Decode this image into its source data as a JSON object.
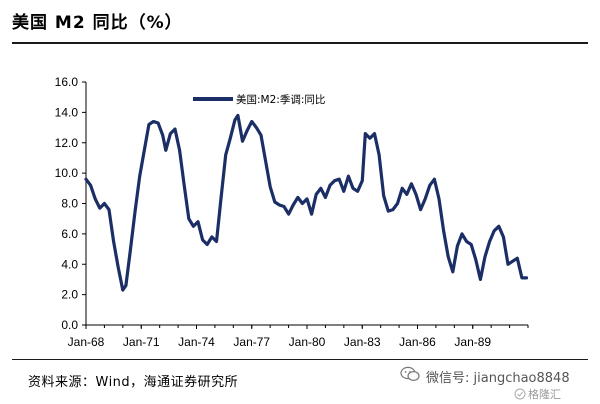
{
  "figure": {
    "title": "美国 M2 同比（%）",
    "source": "资料来源：Wind，海通证券研究所",
    "wechat": "微信号: jiangchao8848",
    "watermark": "格隆汇"
  },
  "chart_data": {
    "type": "line",
    "title": "",
    "xlabel": "",
    "ylabel": "",
    "ylim": [
      0,
      16
    ],
    "yticks": [
      "0.0",
      "2.0",
      "4.0",
      "6.0",
      "8.0",
      "10.0",
      "12.0",
      "14.0",
      "16.0"
    ],
    "xticks": [
      "Jan-68",
      "Jan-71",
      "Jan-74",
      "Jan-77",
      "Jan-80",
      "Jan-83",
      "Jan-86",
      "Jan-89"
    ],
    "x_range": [
      "1968-01",
      "1992-01"
    ],
    "grid": false,
    "legend": "top-center",
    "color": "#1b2f66",
    "series": [
      {
        "name": "美国:M2:季调:同比",
        "points": [
          [
            "1968-01",
            9.6
          ],
          [
            "1968-04",
            9.2
          ],
          [
            "1968-07",
            8.3
          ],
          [
            "1968-10",
            7.7
          ],
          [
            "1969-01",
            8.0
          ],
          [
            "1969-04",
            7.6
          ],
          [
            "1969-07",
            5.5
          ],
          [
            "1969-10",
            3.8
          ],
          [
            "1970-01",
            2.3
          ],
          [
            "1970-03",
            2.6
          ],
          [
            "1970-06",
            5.0
          ],
          [
            "1970-09",
            7.5
          ],
          [
            "1970-12",
            9.8
          ],
          [
            "1971-03",
            11.5
          ],
          [
            "1971-06",
            13.2
          ],
          [
            "1971-09",
            13.4
          ],
          [
            "1971-12",
            13.3
          ],
          [
            "1972-03",
            12.5
          ],
          [
            "1972-05",
            11.5
          ],
          [
            "1972-08",
            12.6
          ],
          [
            "1972-11",
            12.9
          ],
          [
            "1973-02",
            11.5
          ],
          [
            "1973-05",
            9.2
          ],
          [
            "1973-08",
            7.0
          ],
          [
            "1973-11",
            6.5
          ],
          [
            "1974-02",
            6.8
          ],
          [
            "1974-05",
            5.6
          ],
          [
            "1974-08",
            5.3
          ],
          [
            "1974-11",
            5.8
          ],
          [
            "1975-02",
            5.5
          ],
          [
            "1975-05",
            8.4
          ],
          [
            "1975-08",
            11.2
          ],
          [
            "1975-11",
            12.3
          ],
          [
            "1976-02",
            13.5
          ],
          [
            "1976-04",
            13.8
          ],
          [
            "1976-07",
            12.1
          ],
          [
            "1976-10",
            12.8
          ],
          [
            "1977-01",
            13.4
          ],
          [
            "1977-04",
            13.0
          ],
          [
            "1977-07",
            12.5
          ],
          [
            "1977-10",
            10.8
          ],
          [
            "1978-01",
            9.1
          ],
          [
            "1978-04",
            8.1
          ],
          [
            "1978-07",
            7.9
          ],
          [
            "1978-10",
            7.8
          ],
          [
            "1979-01",
            7.3
          ],
          [
            "1979-04",
            7.9
          ],
          [
            "1979-07",
            8.4
          ],
          [
            "1979-10",
            8.0
          ],
          [
            "1980-01",
            8.3
          ],
          [
            "1980-04",
            7.3
          ],
          [
            "1980-07",
            8.6
          ],
          [
            "1980-10",
            9.0
          ],
          [
            "1981-01",
            8.4
          ],
          [
            "1981-04",
            9.2
          ],
          [
            "1981-07",
            9.5
          ],
          [
            "1981-10",
            9.6
          ],
          [
            "1982-01",
            8.8
          ],
          [
            "1982-04",
            9.8
          ],
          [
            "1982-07",
            9.0
          ],
          [
            "1982-10",
            8.8
          ],
          [
            "1983-01",
            9.5
          ],
          [
            "1983-03",
            12.6
          ],
          [
            "1983-06",
            12.3
          ],
          [
            "1983-09",
            12.6
          ],
          [
            "1983-12",
            11.2
          ],
          [
            "1984-03",
            8.5
          ],
          [
            "1984-06",
            7.5
          ],
          [
            "1984-09",
            7.6
          ],
          [
            "1984-12",
            8.0
          ],
          [
            "1985-03",
            9.0
          ],
          [
            "1985-06",
            8.6
          ],
          [
            "1985-09",
            9.3
          ],
          [
            "1985-12",
            8.6
          ],
          [
            "1986-03",
            7.6
          ],
          [
            "1986-06",
            8.3
          ],
          [
            "1986-09",
            9.2
          ],
          [
            "1986-12",
            9.6
          ],
          [
            "1987-03",
            8.3
          ],
          [
            "1987-06",
            6.2
          ],
          [
            "1987-09",
            4.5
          ],
          [
            "1987-12",
            3.5
          ],
          [
            "1988-03",
            5.2
          ],
          [
            "1988-06",
            6.0
          ],
          [
            "1988-09",
            5.5
          ],
          [
            "1988-12",
            5.3
          ],
          [
            "1989-03",
            4.3
          ],
          [
            "1989-06",
            3.0
          ],
          [
            "1989-09",
            4.5
          ],
          [
            "1989-12",
            5.5
          ],
          [
            "1990-03",
            6.2
          ],
          [
            "1990-06",
            6.5
          ],
          [
            "1990-09",
            5.8
          ],
          [
            "1990-12",
            4.0
          ],
          [
            "1991-03",
            4.2
          ],
          [
            "1991-06",
            4.4
          ],
          [
            "1991-09",
            3.1
          ],
          [
            "1991-12",
            3.1
          ]
        ]
      }
    ]
  }
}
